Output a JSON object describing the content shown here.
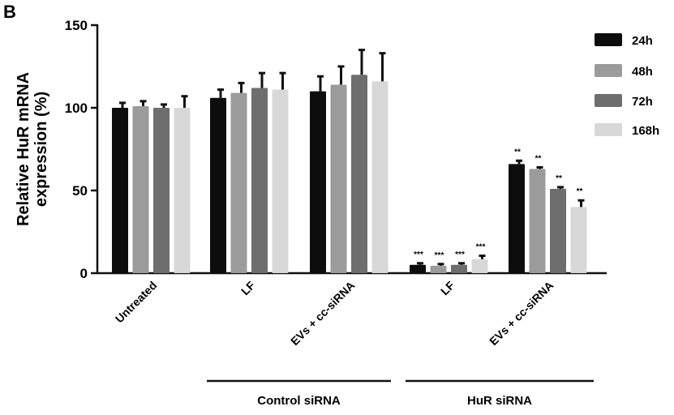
{
  "chart_data": {
    "type": "bar",
    "panel_label": "B",
    "ylabel": "Relative HuR mRNA expression (%)",
    "ylabel_lines": [
      "Relative HuR mRNA",
      "expression (%)"
    ],
    "ylim": [
      0,
      150
    ],
    "yticks": [
      0,
      50,
      100,
      150
    ],
    "categories": [
      "Untreated",
      "LF",
      "EVs + cc-siRNA",
      "LF",
      "EVs + cc-siRNA"
    ],
    "groups": [
      {
        "label": "Control siRNA",
        "categories": [
          1,
          2
        ]
      },
      {
        "label": "HuR siRNA",
        "categories": [
          3,
          4
        ]
      }
    ],
    "series": [
      {
        "name": "24h",
        "color": "#0d0d0d",
        "values": [
          100,
          106,
          110,
          5,
          66
        ],
        "errors": [
          3,
          5,
          9,
          1,
          2
        ],
        "significance": [
          "",
          "",
          "",
          "***",
          "**"
        ]
      },
      {
        "name": "48h",
        "color": "#9b9b9b",
        "values": [
          101,
          109,
          114,
          4.5,
          63
        ],
        "errors": [
          3,
          6,
          11,
          1,
          1
        ],
        "significance": [
          "",
          "",
          "",
          "***",
          "**"
        ]
      },
      {
        "name": "72h",
        "color": "#6e6e6e",
        "values": [
          100,
          112,
          120,
          5,
          51
        ],
        "errors": [
          2,
          9,
          15,
          1,
          1
        ],
        "significance": [
          "",
          "",
          "",
          "***",
          "**"
        ]
      },
      {
        "name": "168h",
        "color": "#d8d8d8",
        "values": [
          100,
          111,
          116,
          8.5,
          40
        ],
        "errors": [
          7,
          10,
          17,
          2,
          4
        ],
        "significance": [
          "",
          "",
          "",
          "***",
          "**"
        ]
      }
    ]
  }
}
